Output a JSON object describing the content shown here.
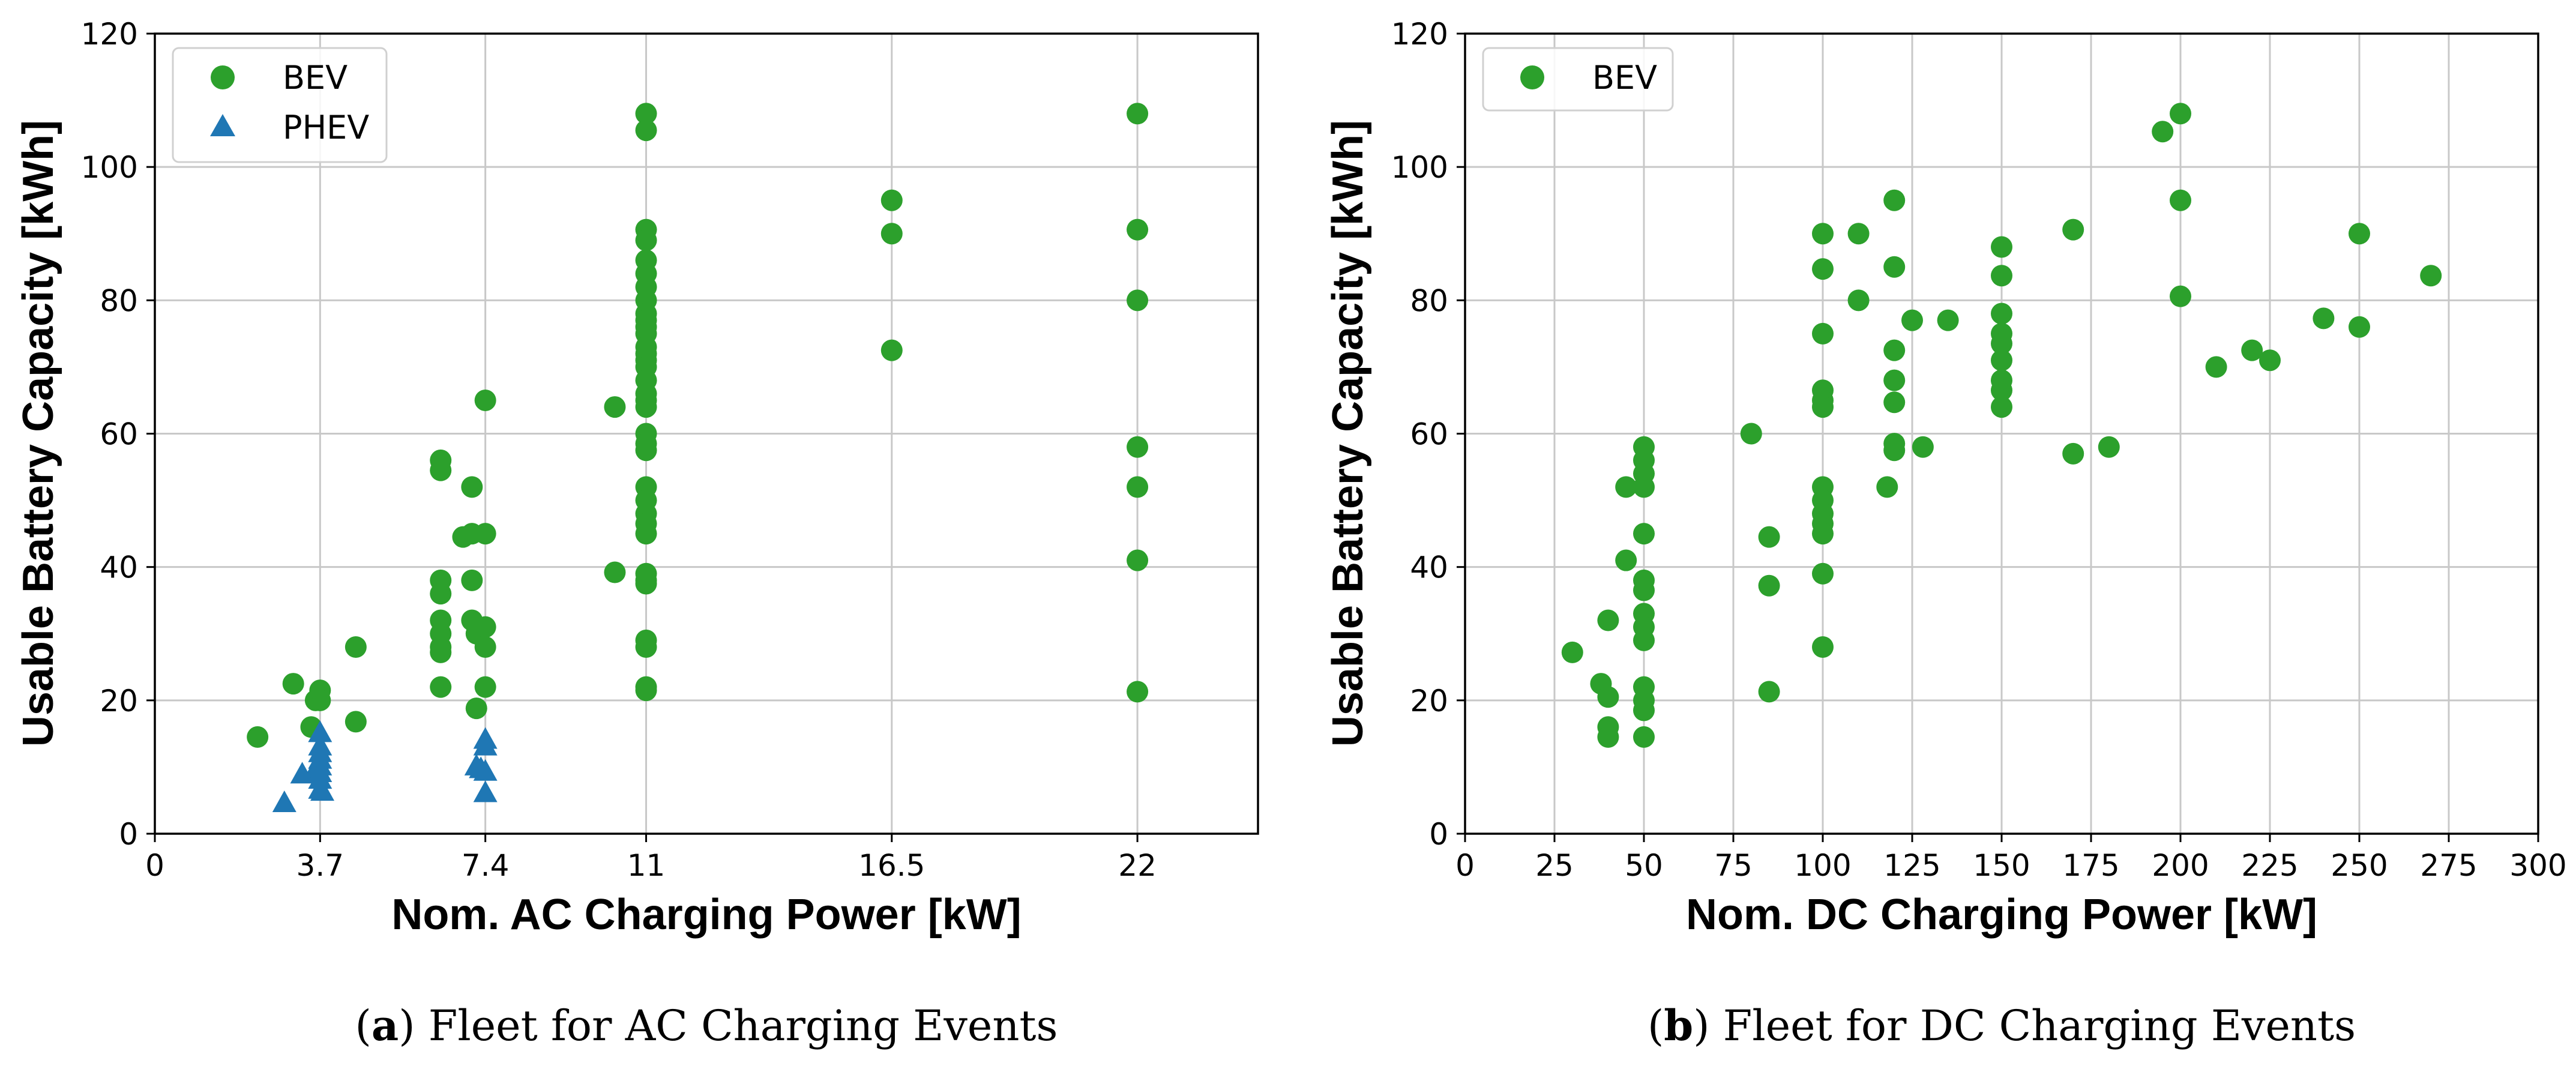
{
  "colors": {
    "bev": "#2ca02c",
    "phev": "#1f77b4",
    "grid": "#c8c8c8"
  },
  "chart_data": [
    {
      "type": "scatter",
      "panel_label": "a",
      "caption": "Fleet for AC Charging Events",
      "xlabel": "Nom. AC Charging Power [kW]",
      "ylabel": "Usable Battery Capacity [kWh]",
      "xlim": [
        0,
        24.7
      ],
      "ylim": [
        0,
        120
      ],
      "xticks": [
        0,
        3.7,
        7.4,
        11,
        16.5,
        22
      ],
      "xtick_labels": [
        "0",
        "3.7",
        "7.4",
        "11",
        "16.5",
        "22"
      ],
      "yticks": [
        0,
        20,
        40,
        60,
        80,
        100,
        120
      ],
      "ytick_labels": [
        "0",
        "20",
        "40",
        "60",
        "80",
        "100",
        "120"
      ],
      "grid": true,
      "legend_position": "top-left",
      "series": [
        {
          "name": "BEV",
          "marker": "circle",
          "color": "#2ca02c",
          "points": [
            [
              2.3,
              14.5
            ],
            [
              3.1,
              22.5
            ],
            [
              3.5,
              16
            ],
            [
              3.6,
              20
            ],
            [
              3.7,
              21.5
            ],
            [
              3.7,
              20
            ],
            [
              4.5,
              28
            ],
            [
              4.5,
              16.8
            ],
            [
              6.4,
              56
            ],
            [
              6.4,
              54.5
            ],
            [
              6.4,
              38
            ],
            [
              6.4,
              36
            ],
            [
              6.4,
              32
            ],
            [
              6.4,
              30
            ],
            [
              6.4,
              28
            ],
            [
              6.4,
              27.2
            ],
            [
              6.4,
              22
            ],
            [
              6.9,
              44.5
            ],
            [
              7.1,
              52
            ],
            [
              7.1,
              45
            ],
            [
              7.1,
              38
            ],
            [
              7.1,
              32
            ],
            [
              7.2,
              30
            ],
            [
              7.2,
              18.8
            ],
            [
              7.4,
              65
            ],
            [
              7.4,
              45
            ],
            [
              7.4,
              31
            ],
            [
              7.4,
              28
            ],
            [
              7.4,
              22
            ],
            [
              10.3,
              64
            ],
            [
              10.3,
              39.2
            ],
            [
              11,
              108
            ],
            [
              11,
              105.5
            ],
            [
              11,
              90.6
            ],
            [
              11,
              89
            ],
            [
              11,
              86
            ],
            [
              11,
              84
            ],
            [
              11,
              82
            ],
            [
              11,
              80
            ],
            [
              11,
              78
            ],
            [
              11,
              77
            ],
            [
              11,
              76
            ],
            [
              11,
              75
            ],
            [
              11,
              73
            ],
            [
              11,
              72
            ],
            [
              11,
              71
            ],
            [
              11,
              70
            ],
            [
              11,
              68
            ],
            [
              11,
              66
            ],
            [
              11,
              65
            ],
            [
              11,
              64
            ],
            [
              11,
              60
            ],
            [
              11,
              58.5
            ],
            [
              11,
              57.5
            ],
            [
              11,
              52
            ],
            [
              11,
              50
            ],
            [
              11,
              48
            ],
            [
              11,
              46.5
            ],
            [
              11,
              45
            ],
            [
              11,
              39
            ],
            [
              11,
              38
            ],
            [
              11,
              37.5
            ],
            [
              11,
              29
            ],
            [
              11,
              28
            ],
            [
              11,
              22
            ],
            [
              11,
              21.5
            ],
            [
              16.5,
              95
            ],
            [
              16.5,
              90
            ],
            [
              16.5,
              72.5
            ],
            [
              22,
              108
            ],
            [
              22,
              90.6
            ],
            [
              22,
              80
            ],
            [
              22,
              58
            ],
            [
              22,
              52
            ],
            [
              22,
              41
            ],
            [
              22,
              21.3
            ]
          ]
        },
        {
          "name": "PHEV",
          "marker": "triangle",
          "color": "#1f77b4",
          "points": [
            [
              2.9,
              4.5
            ],
            [
              3.3,
              8.8
            ],
            [
              3.6,
              9.5
            ],
            [
              3.7,
              15
            ],
            [
              3.7,
              13
            ],
            [
              3.7,
              12
            ],
            [
              3.7,
              11
            ],
            [
              3.7,
              10
            ],
            [
              3.7,
              9
            ],
            [
              3.7,
              8
            ],
            [
              3.7,
              6.5
            ],
            [
              3.75,
              6.2
            ],
            [
              7.2,
              10
            ],
            [
              7.3,
              9.6
            ],
            [
              7.4,
              14
            ],
            [
              7.4,
              13
            ],
            [
              7.4,
              9.2
            ],
            [
              7.4,
              6
            ]
          ]
        }
      ]
    },
    {
      "type": "scatter",
      "panel_label": "b",
      "caption": "Fleet for DC Charging Events",
      "xlabel": "Nom. DC Charging Power [kW]",
      "ylabel": "Usable Battery Capacity [kWh]",
      "xlim": [
        0,
        300
      ],
      "ylim": [
        0,
        120
      ],
      "xticks": [
        0,
        25,
        50,
        75,
        100,
        125,
        150,
        175,
        200,
        225,
        250,
        275,
        300
      ],
      "xtick_labels": [
        "0",
        "25",
        "50",
        "75",
        "100",
        "125",
        "150",
        "175",
        "200",
        "225",
        "250",
        "275",
        "300"
      ],
      "yticks": [
        0,
        20,
        40,
        60,
        80,
        100,
        120
      ],
      "ytick_labels": [
        "0",
        "20",
        "40",
        "60",
        "80",
        "100",
        "120"
      ],
      "grid": true,
      "legend_position": "top-left",
      "series": [
        {
          "name": "BEV",
          "marker": "circle",
          "color": "#2ca02c",
          "points": [
            [
              30,
              27.2
            ],
            [
              38,
              22.5
            ],
            [
              40,
              32
            ],
            [
              40,
              20.5
            ],
            [
              40,
              16
            ],
            [
              40,
              14.5
            ],
            [
              45,
              52
            ],
            [
              45,
              41
            ],
            [
              50,
              58
            ],
            [
              50,
              56
            ],
            [
              50,
              54
            ],
            [
              50,
              52
            ],
            [
              50,
              45
            ],
            [
              50,
              38
            ],
            [
              50,
              36.5
            ],
            [
              50,
              33
            ],
            [
              50,
              31
            ],
            [
              50,
              29
            ],
            [
              50,
              22
            ],
            [
              50,
              20
            ],
            [
              50,
              18.5
            ],
            [
              50,
              14.5
            ],
            [
              80,
              60
            ],
            [
              85,
              44.5
            ],
            [
              85,
              37.2
            ],
            [
              85,
              21.3
            ],
            [
              100,
              90
            ],
            [
              100,
              84.7
            ],
            [
              100,
              75
            ],
            [
              100,
              66.5
            ],
            [
              100,
              65
            ],
            [
              100,
              64
            ],
            [
              100,
              52
            ],
            [
              100,
              50
            ],
            [
              100,
              48
            ],
            [
              100,
              46.5
            ],
            [
              100,
              45
            ],
            [
              100,
              39
            ],
            [
              100,
              28
            ],
            [
              110,
              90
            ],
            [
              110,
              80
            ],
            [
              118,
              52
            ],
            [
              120,
              95
            ],
            [
              120,
              85
            ],
            [
              120,
              72.5
            ],
            [
              120,
              68
            ],
            [
              120,
              64.7
            ],
            [
              120,
              58.5
            ],
            [
              120,
              57.5
            ],
            [
              125,
              77
            ],
            [
              128,
              58
            ],
            [
              135,
              77
            ],
            [
              150,
              88
            ],
            [
              150,
              83.7
            ],
            [
              150,
              78
            ],
            [
              150,
              75
            ],
            [
              150,
              73.5
            ],
            [
              150,
              71
            ],
            [
              150,
              68
            ],
            [
              150,
              66.5
            ],
            [
              150,
              64
            ],
            [
              170,
              90.6
            ],
            [
              170,
              57
            ],
            [
              180,
              58
            ],
            [
              195,
              105.3
            ],
            [
              200,
              108
            ],
            [
              200,
              95
            ],
            [
              200,
              80.6
            ],
            [
              210,
              70
            ],
            [
              220,
              72.5
            ],
            [
              225,
              71
            ],
            [
              240,
              77.3
            ],
            [
              250,
              90
            ],
            [
              250,
              76
            ],
            [
              270,
              83.7
            ]
          ]
        }
      ]
    }
  ]
}
